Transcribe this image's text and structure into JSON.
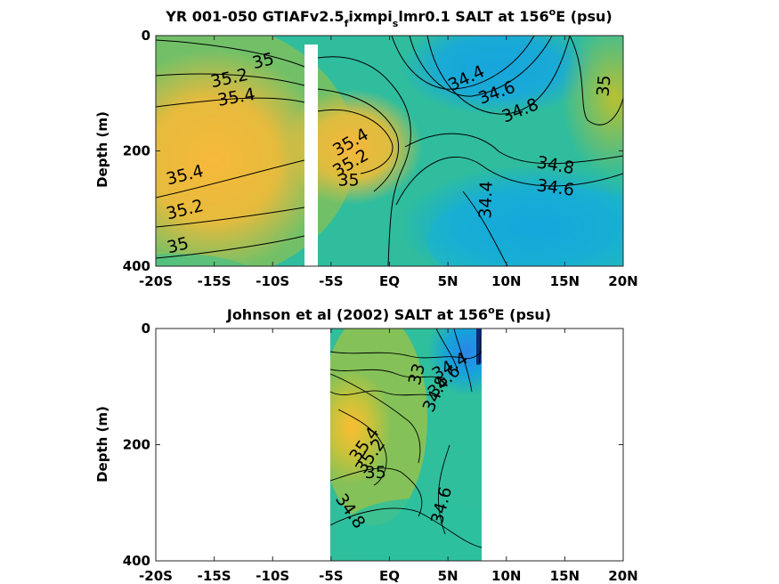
{
  "chart_data": [
    {
      "type": "heatmap",
      "title_main": "YR 001-050 GTIAFv2.5",
      "title_sub1": "f",
      "title_mid": "ixmpi",
      "title_sub2": "s",
      "title_tail": "lmr0.1 SALT at 156",
      "title_sup": "o",
      "title_end": "E (psu)",
      "xlabel": "",
      "ylabel": "Depth (m)",
      "x_ticks": [
        "-20S",
        "-15S",
        "-10S",
        "-5S",
        "EQ",
        "5N",
        "10N",
        "15N",
        "20N"
      ],
      "x_tick_values": [
        -20,
        -15,
        -10,
        -5,
        0,
        5,
        10,
        15,
        20
      ],
      "y_ticks": [
        "0",
        "200",
        "400"
      ],
      "y_tick_values": [
        0,
        200,
        400
      ],
      "xlim": [
        -20,
        20
      ],
      "ylim": [
        400,
        0
      ],
      "colorscale": "parula",
      "clim": [
        33.8,
        35.8
      ],
      "data_gap": {
        "lat_from": -7.0,
        "lat_to": -5.8
      },
      "contour_labels": [
        {
          "text": "35",
          "lat": -10.8,
          "depth": 45,
          "angle": -14
        },
        {
          "text": "35.2",
          "lat": -13.7,
          "depth": 75,
          "angle": -12
        },
        {
          "text": "35.4",
          "lat": -13.1,
          "depth": 108,
          "angle": -10
        },
        {
          "text": "35.4",
          "lat": -17.5,
          "depth": 243,
          "angle": -14
        },
        {
          "text": "35.2",
          "lat": -17.5,
          "depth": 303,
          "angle": -14
        },
        {
          "text": "35",
          "lat": -18.1,
          "depth": 365,
          "angle": -14
        },
        {
          "text": "35.4",
          "lat": -3.3,
          "depth": 186,
          "angle": -30
        },
        {
          "text": "35.2",
          "lat": -3.3,
          "depth": 222,
          "angle": -30
        },
        {
          "text": "35",
          "lat": -3.5,
          "depth": 252,
          "angle": 0
        },
        {
          "text": "34.4",
          "lat": 6.6,
          "depth": 75,
          "angle": -25
        },
        {
          "text": "34.6",
          "lat": 9.2,
          "depth": 100,
          "angle": -20
        },
        {
          "text": "34.8",
          "lat": 11.2,
          "depth": 131,
          "angle": -22
        },
        {
          "text": "35",
          "lat": 18.4,
          "depth": 87,
          "angle": -85
        },
        {
          "text": "34.8",
          "lat": 14.2,
          "depth": 226,
          "angle": 10
        },
        {
          "text": "34.6",
          "lat": 14.2,
          "depth": 265,
          "angle": 8
        },
        {
          "text": "34.4",
          "lat": 8.3,
          "depth": 285,
          "angle": -88
        }
      ]
    },
    {
      "type": "heatmap",
      "title_main": "Johnson et al (2002) SALT at 156",
      "title_sup": "o",
      "title_end": "E (psu)",
      "xlabel": "",
      "ylabel": "Depth (m)",
      "x_ticks": [
        "-20S",
        "-15S",
        "-10S",
        "-5S",
        "EQ",
        "5N",
        "10N",
        "15N",
        "20N"
      ],
      "x_tick_values": [
        -20,
        -15,
        -10,
        -5,
        0,
        5,
        10,
        15,
        20
      ],
      "y_ticks": [
        "0",
        "200",
        "400"
      ],
      "y_tick_values": [
        0,
        200,
        400
      ],
      "xlim": [
        -20,
        20
      ],
      "ylim": [
        400,
        0
      ],
      "colorscale": "parula",
      "clim": [
        33.8,
        35.8
      ],
      "data_extent": {
        "lat_from": -5.0,
        "lat_to": 8.0
      },
      "contour_labels": [
        {
          "text": "34.4",
          "lat": 5.2,
          "depth": 66,
          "angle": -30
        },
        {
          "text": "34.6",
          "lat": 4.7,
          "depth": 92,
          "angle": -45
        },
        {
          "text": "34.8",
          "lat": 4.0,
          "depth": 113,
          "angle": -65
        },
        {
          "text": "33",
          "lat": 2.4,
          "depth": 79,
          "angle": -75
        },
        {
          "text": "35.4",
          "lat": -2.1,
          "depth": 200,
          "angle": -55
        },
        {
          "text": "35.2",
          "lat": -1.6,
          "depth": 220,
          "angle": -55
        },
        {
          "text": "35",
          "lat": -1.2,
          "depth": 249,
          "angle": 0
        },
        {
          "text": "34.8",
          "lat": -3.4,
          "depth": 315,
          "angle": 55
        },
        {
          "text": "34.6",
          "lat": 4.5,
          "depth": 305,
          "angle": -75
        }
      ]
    }
  ]
}
